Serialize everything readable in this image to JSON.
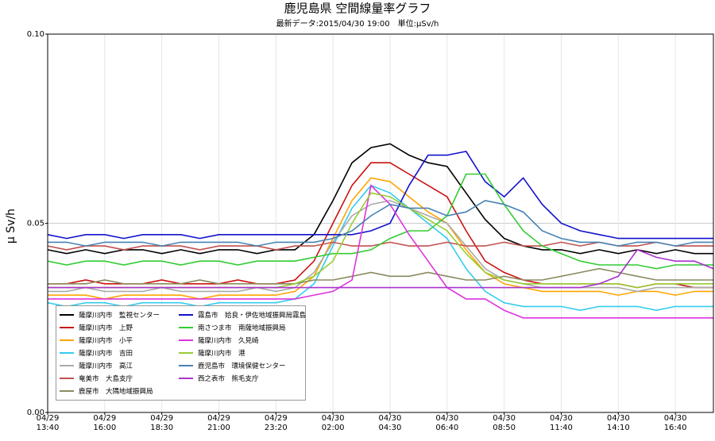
{
  "chart_data": {
    "type": "line",
    "title": "鹿児島県 空間線量率グラフ",
    "subtitle": "最新データ:2015/04/30 19:00　単位:μSv/h",
    "y_label": "μ Sv/h",
    "categories": [
      "04/29\n13:40",
      null,
      null,
      "04/29\n16:00",
      null,
      null,
      "04/29\n18:30",
      null,
      null,
      "04/29\n21:00",
      null,
      null,
      "04/29\n23:20",
      null,
      null,
      "04/30\n02:00",
      null,
      null,
      "04/30\n04:30",
      null,
      null,
      "04/30\n06:40",
      null,
      null,
      "04/30\n08:50",
      null,
      null,
      "04/30\n11:40",
      null,
      null,
      "04/30\n14:10",
      null,
      null,
      "04/30\n16:40",
      null,
      null
    ],
    "ylim": [
      0,
      0.1
    ],
    "yticks": [
      {
        "value": 0,
        "label": "0.00"
      },
      {
        "value": 0.05,
        "label": "0.05"
      },
      {
        "value": 0.1,
        "label": "0.10"
      }
    ],
    "grid": true,
    "legend": "lower left",
    "series": [
      {
        "name": "薩摩川内市　監視センター",
        "color": "#000000",
        "values": [
          0.043,
          0.042,
          0.043,
          0.042,
          0.043,
          0.043,
          0.042,
          0.043,
          0.042,
          0.043,
          0.043,
          0.042,
          0.043,
          0.043,
          0.047,
          0.056,
          0.066,
          0.07,
          0.071,
          0.068,
          0.066,
          0.065,
          0.058,
          0.051,
          0.046,
          0.044,
          0.043,
          0.043,
          0.042,
          0.043,
          0.042,
          0.043,
          0.042,
          0.043,
          0.042,
          0.042
        ]
      },
      {
        "name": "薩摩川内市　上野",
        "color": "#cc1111",
        "values": [
          0.034,
          0.034,
          0.035,
          0.034,
          0.034,
          0.034,
          0.035,
          0.034,
          0.034,
          0.034,
          0.035,
          0.034,
          0.034,
          0.035,
          0.04,
          0.05,
          0.06,
          0.066,
          0.066,
          0.063,
          0.06,
          0.057,
          0.048,
          0.04,
          0.037,
          0.035,
          0.034,
          0.034,
          0.034,
          0.034,
          0.034,
          0.033,
          0.034,
          0.034,
          0.033,
          0.033
        ]
      },
      {
        "name": "薩摩川内市　小平",
        "color": "#ffa500",
        "values": [
          0.031,
          0.031,
          0.031,
          0.03,
          0.031,
          0.031,
          0.031,
          0.031,
          0.03,
          0.031,
          0.031,
          0.031,
          0.031,
          0.032,
          0.036,
          0.046,
          0.056,
          0.062,
          0.061,
          0.057,
          0.053,
          0.05,
          0.043,
          0.037,
          0.034,
          0.033,
          0.032,
          0.032,
          0.032,
          0.032,
          0.031,
          0.032,
          0.032,
          0.031,
          0.032,
          0.032
        ]
      },
      {
        "name": "薩摩川内市　吉田",
        "color": "#33ccee",
        "values": [
          0.029,
          0.028,
          0.029,
          0.029,
          0.028,
          0.029,
          0.029,
          0.029,
          0.028,
          0.029,
          0.029,
          0.029,
          0.029,
          0.03,
          0.034,
          0.044,
          0.054,
          0.06,
          0.058,
          0.054,
          0.05,
          0.046,
          0.038,
          0.032,
          0.029,
          0.028,
          0.028,
          0.028,
          0.027,
          0.028,
          0.028,
          0.028,
          0.027,
          0.028,
          0.028,
          0.028
        ]
      },
      {
        "name": "薩摩川内市　高江",
        "color": "#aaaaaa",
        "values": [
          0.032,
          0.032,
          0.033,
          0.032,
          0.032,
          0.032,
          0.033,
          0.032,
          0.032,
          0.032,
          0.032,
          0.033,
          0.032,
          0.033,
          0.037,
          0.045,
          0.052,
          0.055,
          0.056,
          0.054,
          0.052,
          0.05,
          0.044,
          0.038,
          0.035,
          0.034,
          0.033,
          0.033,
          0.033,
          0.033,
          0.033,
          0.032,
          0.033,
          0.033,
          0.033,
          0.033
        ]
      },
      {
        "name": "奄美市　大島支庁",
        "color": "#c0504d",
        "values": [
          0.044,
          0.043,
          0.044,
          0.044,
          0.043,
          0.044,
          0.044,
          0.044,
          0.043,
          0.044,
          0.044,
          0.044,
          0.043,
          0.044,
          0.044,
          0.045,
          0.044,
          0.044,
          0.045,
          0.044,
          0.044,
          0.045,
          0.044,
          0.044,
          0.045,
          0.044,
          0.044,
          0.045,
          0.044,
          0.045,
          0.044,
          0.044,
          0.045,
          0.044,
          0.044,
          0.044
        ]
      },
      {
        "name": "鹿屋市　大隅地域振興局",
        "color": "#8a8a60",
        "values": [
          0.034,
          0.034,
          0.034,
          0.035,
          0.034,
          0.034,
          0.034,
          0.034,
          0.035,
          0.034,
          0.034,
          0.034,
          0.034,
          0.034,
          0.035,
          0.035,
          0.036,
          0.037,
          0.036,
          0.036,
          0.037,
          0.036,
          0.035,
          0.035,
          0.036,
          0.035,
          0.035,
          0.036,
          0.037,
          0.038,
          0.037,
          0.036,
          0.035,
          0.035,
          0.035,
          0.035
        ]
      },
      {
        "name": "霧島市　姶良・伊佐地域振興局霧島庁舎",
        "color": "#1111cc",
        "values": [
          0.047,
          0.046,
          0.047,
          0.047,
          0.046,
          0.047,
          0.047,
          0.047,
          0.046,
          0.047,
          0.047,
          0.047,
          0.047,
          0.047,
          0.047,
          0.047,
          0.047,
          0.048,
          0.05,
          0.06,
          0.068,
          0.068,
          0.069,
          0.061,
          0.057,
          0.062,
          0.055,
          0.05,
          0.048,
          0.047,
          0.046,
          0.046,
          0.046,
          0.046,
          0.046,
          0.046
        ]
      },
      {
        "name": "南さつま市　南薩地域振興局",
        "color": "#33cc33",
        "values": [
          0.04,
          0.039,
          0.04,
          0.04,
          0.039,
          0.04,
          0.04,
          0.039,
          0.04,
          0.04,
          0.039,
          0.04,
          0.04,
          0.04,
          0.041,
          0.042,
          0.042,
          0.043,
          0.046,
          0.048,
          0.048,
          0.052,
          0.063,
          0.063,
          0.055,
          0.048,
          0.044,
          0.042,
          0.04,
          0.039,
          0.039,
          0.039,
          0.038,
          0.039,
          0.039,
          0.039
        ]
      },
      {
        "name": "薩摩川内市　久見崎",
        "color": "#dd33dd",
        "values": [
          0.03,
          0.03,
          0.03,
          0.03,
          0.03,
          0.03,
          0.03,
          0.03,
          0.03,
          0.03,
          0.03,
          0.03,
          0.03,
          0.03,
          0.031,
          0.032,
          0.035,
          0.06,
          0.055,
          0.047,
          0.04,
          0.033,
          0.03,
          0.03,
          0.027,
          0.025,
          0.025,
          0.025,
          0.025,
          0.025,
          0.025,
          0.025,
          0.025,
          0.025,
          0.025,
          0.025
        ]
      },
      {
        "name": "薩摩川内市　港",
        "color": "#99cc33",
        "values": [
          0.033,
          0.033,
          0.033,
          0.033,
          0.033,
          0.033,
          0.033,
          0.033,
          0.033,
          0.033,
          0.033,
          0.033,
          0.033,
          0.034,
          0.036,
          0.04,
          0.05,
          0.058,
          0.057,
          0.054,
          0.051,
          0.048,
          0.042,
          0.037,
          0.035,
          0.034,
          0.034,
          0.034,
          0.034,
          0.034,
          0.034,
          0.033,
          0.034,
          0.034,
          0.034,
          0.034
        ]
      },
      {
        "name": "鹿児島市　環境保健センター",
        "color": "#4682b4",
        "values": [
          0.045,
          0.045,
          0.044,
          0.045,
          0.045,
          0.045,
          0.044,
          0.045,
          0.045,
          0.045,
          0.045,
          0.044,
          0.045,
          0.045,
          0.045,
          0.046,
          0.048,
          0.052,
          0.055,
          0.054,
          0.054,
          0.052,
          0.053,
          0.056,
          0.055,
          0.053,
          0.048,
          0.046,
          0.045,
          0.045,
          0.044,
          0.045,
          0.045,
          0.044,
          0.045,
          0.045
        ]
      },
      {
        "name": "西之表市　熊毛支庁",
        "color": "#aa33cc",
        "values": [
          0.033,
          0.033,
          0.033,
          0.033,
          0.033,
          0.033,
          0.033,
          0.033,
          0.033,
          0.033,
          0.033,
          0.033,
          0.033,
          0.033,
          0.033,
          0.033,
          0.033,
          0.033,
          0.033,
          0.033,
          0.033,
          0.033,
          0.033,
          0.033,
          0.033,
          0.033,
          0.033,
          0.033,
          0.033,
          0.034,
          0.036,
          0.043,
          0.041,
          0.04,
          0.04,
          0.038
        ]
      }
    ]
  }
}
